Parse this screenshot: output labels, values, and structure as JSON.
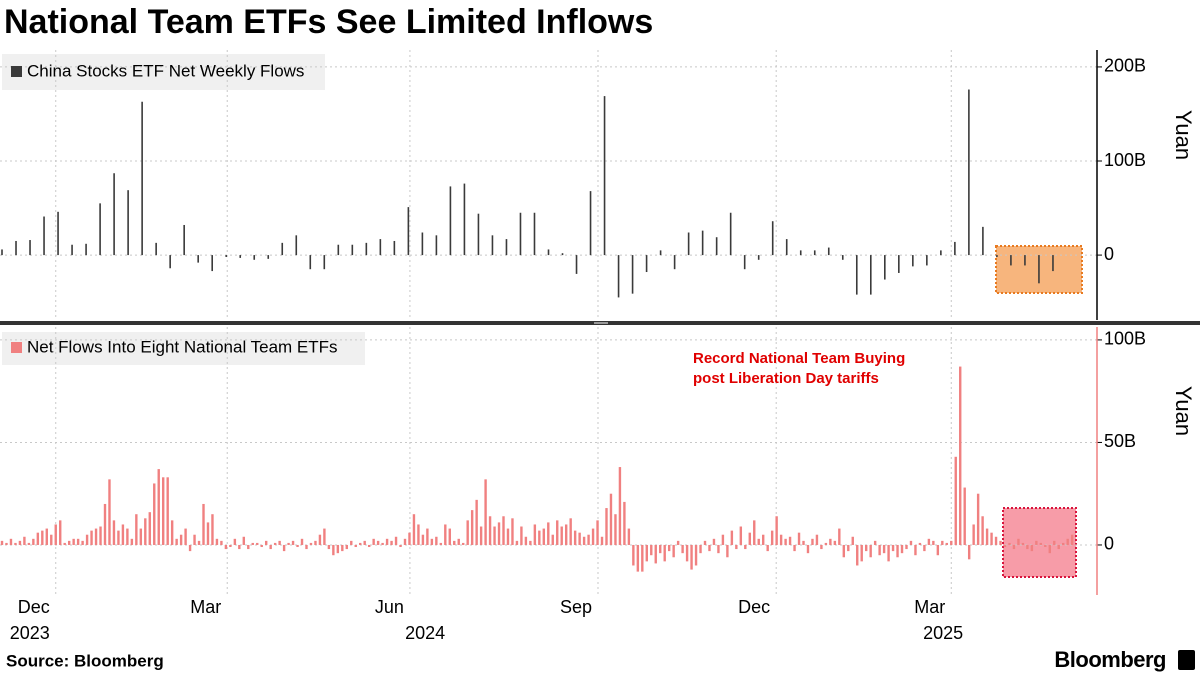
{
  "title": "National Team ETFs See Limited Inflows",
  "source": "Source: Bloomberg",
  "brand": "Bloomberg",
  "chart_data": [
    {
      "type": "bar",
      "series": [
        {
          "name": "China Stocks ETF Net Weekly Flows",
          "color": "#3a3a3a",
          "values": [
            6,
            15,
            16,
            41,
            46,
            11,
            12,
            55,
            87,
            69,
            163,
            13,
            -14,
            32,
            -8,
            -17,
            -2,
            -3,
            -5,
            -4,
            13,
            21,
            -15,
            -15,
            11,
            11,
            13,
            17,
            15,
            51,
            24,
            21,
            73,
            76,
            44,
            21,
            17,
            45,
            45,
            6,
            2,
            -20,
            68,
            169,
            -45,
            -41,
            -18,
            5,
            -15,
            24,
            26,
            19,
            45,
            -15,
            -5,
            36,
            17,
            5,
            5,
            8,
            -5,
            -42,
            -42,
            -26,
            -19,
            -12,
            -11,
            5,
            14,
            176,
            30,
            -2,
            -11,
            -11,
            -30,
            -17
          ]
        }
      ],
      "xlim": [
        -0.143,
        78.0
      ],
      "ylim": [
        -69,
        218
      ],
      "yticks": [
        0,
        {
          "value": 100,
          "label": "100B"
        },
        {
          "value": 200,
          "label": "200B"
        }
      ],
      "ylabel": "Yuan",
      "grid": true
    },
    {
      "type": "bar",
      "series": [
        {
          "name": "Net Flows Into Eight National Team ETFs",
          "color": "#f08080",
          "values": [
            2,
            1,
            3,
            1,
            2,
            4,
            1,
            3,
            6,
            7,
            8,
            5,
            10,
            12,
            1,
            2,
            3,
            3,
            2,
            5,
            7,
            8,
            9,
            20,
            32,
            12,
            7,
            10,
            8,
            3,
            15,
            8,
            13,
            16,
            30,
            37,
            33,
            33,
            12,
            3,
            5,
            8,
            -3,
            5,
            2,
            20,
            11,
            15,
            3,
            2,
            -2,
            -1,
            3,
            -2,
            4,
            -2,
            1,
            1,
            -1,
            2,
            -2,
            1,
            2,
            -3,
            1,
            2,
            -1,
            3,
            -2,
            1,
            2,
            5,
            8,
            -2,
            -5,
            -4,
            -3,
            -2,
            2,
            -1,
            1,
            2,
            -1,
            3,
            2,
            1,
            3,
            2,
            4,
            -1,
            3,
            6,
            15,
            10,
            5,
            8,
            3,
            4,
            1,
            10,
            8,
            2,
            3,
            1,
            12,
            17,
            22,
            9,
            32,
            14,
            9,
            11,
            14,
            8,
            13,
            2,
            9,
            4,
            2,
            10,
            7,
            8,
            11,
            5,
            12,
            9,
            10,
            13,
            7,
            6,
            4,
            5,
            8,
            12,
            4,
            18,
            25,
            15,
            38,
            21,
            8,
            -10,
            -13,
            -13,
            -8,
            -5,
            -9,
            -4,
            -8,
            -3,
            -6,
            2,
            -4,
            -8,
            -12,
            -10,
            -4,
            2,
            -3,
            3,
            -4,
            5,
            -6,
            7,
            -2,
            9,
            -2,
            6,
            12,
            3,
            5,
            -3,
            7,
            14,
            5,
            3,
            4,
            -3,
            6,
            2,
            -4,
            3,
            5,
            -2,
            1,
            3,
            2,
            8,
            -6,
            -3,
            4,
            -10,
            -8,
            -3,
            -6,
            2,
            -5,
            -4,
            -8,
            -3,
            -6,
            -4,
            -2,
            2,
            -5,
            1,
            -3,
            3,
            2,
            -5,
            2,
            1,
            2,
            43,
            87,
            28,
            -7,
            10,
            25,
            14,
            8,
            6,
            4,
            2,
            -1,
            1,
            -2,
            3,
            1,
            -2,
            -3,
            2,
            1,
            -1,
            -4,
            2,
            -2,
            1,
            3,
            5
          ]
        }
      ],
      "xlim": [
        -0.45,
        244.1
      ],
      "xticks": [
        {
          "value": 12,
          "label": "Dec"
        },
        {
          "value": 50.3,
          "label": "Mar"
        },
        {
          "value": 91.1,
          "label": "Jun"
        },
        {
          "value": 133.1,
          "label": "Sep"
        },
        {
          "value": 172.9,
          "label": "Dec"
        },
        {
          "value": 212,
          "label": "Mar"
        }
      ],
      "year_labels": [
        {
          "value": 12,
          "label": "2023"
        },
        {
          "value": 100.3,
          "label": "2024"
        },
        {
          "value": 216,
          "label": "2025"
        }
      ],
      "ylim": [
        -24.4,
        106.3
      ],
      "yticks": [
        0,
        {
          "value": 50,
          "label": "50B"
        },
        {
          "value": 100,
          "label": "100B"
        }
      ],
      "ylabel": "Yuan",
      "grid": true,
      "annotation": [
        "Record National Team Buying",
        "post Liberation Day tariffs"
      ]
    }
  ]
}
